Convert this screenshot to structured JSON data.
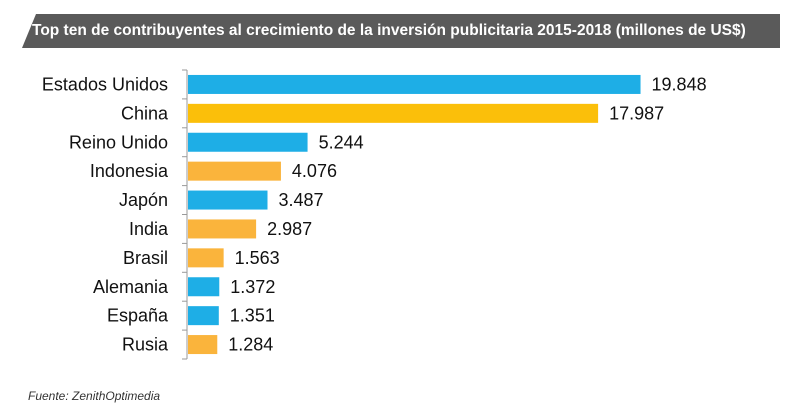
{
  "title": "Top ten de contribuyentes al crecimiento de la inversión publicitaria 2015-2018 (millones de US$)",
  "source": "Fuente: ZenithOptimedia",
  "colors": {
    "title_bg": "#5a5a5a",
    "blue": "#1eaee6",
    "yellow": "#fbbf0a",
    "orange": "#fab43c",
    "axis": "#9a9a9a"
  },
  "chart_data": {
    "type": "bar",
    "orientation": "horizontal",
    "title": "Top ten de contribuyentes al crecimiento de la inversión publicitaria 2015-2018 (millones de US$)",
    "categories": [
      "Estados Unidos",
      "China",
      "Reino Unido",
      "Indonesia",
      "Japón",
      "India",
      "Brasil",
      "Alemania",
      "España",
      "Rusia"
    ],
    "values": [
      19848,
      17987,
      5244,
      4076,
      3487,
      2987,
      1563,
      1372,
      1351,
      1284
    ],
    "value_labels": [
      "19.848",
      "17.987",
      "5.244",
      "4.076",
      "3.487",
      "2.987",
      "1.563",
      "1.372",
      "1.351",
      "1.284"
    ],
    "bar_colors": [
      "blue",
      "yellow",
      "blue",
      "orange",
      "blue",
      "orange",
      "orange",
      "blue",
      "blue",
      "orange"
    ],
    "xlim": [
      0,
      20000
    ],
    "grid": false,
    "legend": "none"
  }
}
